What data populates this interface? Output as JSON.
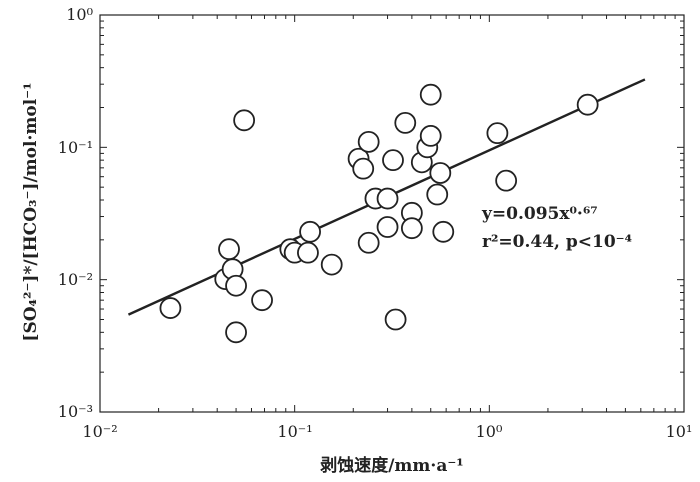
{
  "chart_data": {
    "type": "scatter",
    "title": "",
    "xlabel": "剥蚀速度/mm·a⁻¹",
    "ylabel": "[SO₄²⁻]*/[HCO₃⁻]/mol·mol⁻¹",
    "x_scale": "log",
    "y_scale": "log",
    "xlim": [
      0.01,
      10
    ],
    "ylim": [
      0.001,
      1
    ],
    "x_ticks": [
      "10⁻²",
      "10⁻¹",
      "10⁰",
      "10¹"
    ],
    "y_ticks": [
      "10⁰",
      "10⁻¹",
      "10⁻²",
      "10⁻³"
    ],
    "grid": false,
    "points": [
      {
        "x": 0.023,
        "y": 0.0061
      },
      {
        "x": 0.044,
        "y": 0.0101
      },
      {
        "x": 0.046,
        "y": 0.017
      },
      {
        "x": 0.048,
        "y": 0.012
      },
      {
        "x": 0.05,
        "y": 0.009
      },
      {
        "x": 0.05,
        "y": 0.004
      },
      {
        "x": 0.055,
        "y": 0.16
      },
      {
        "x": 0.068,
        "y": 0.007
      },
      {
        "x": 0.095,
        "y": 0.017
      },
      {
        "x": 0.1,
        "y": 0.016
      },
      {
        "x": 0.117,
        "y": 0.016
      },
      {
        "x": 0.12,
        "y": 0.023
      },
      {
        "x": 0.155,
        "y": 0.013
      },
      {
        "x": 0.213,
        "y": 0.082
      },
      {
        "x": 0.225,
        "y": 0.069
      },
      {
        "x": 0.24,
        "y": 0.11
      },
      {
        "x": 0.24,
        "y": 0.019
      },
      {
        "x": 0.26,
        "y": 0.041
      },
      {
        "x": 0.3,
        "y": 0.041
      },
      {
        "x": 0.3,
        "y": 0.025
      },
      {
        "x": 0.32,
        "y": 0.08
      },
      {
        "x": 0.33,
        "y": 0.005
      },
      {
        "x": 0.37,
        "y": 0.153
      },
      {
        "x": 0.4,
        "y": 0.032
      },
      {
        "x": 0.4,
        "y": 0.0245
      },
      {
        "x": 0.45,
        "y": 0.077
      },
      {
        "x": 0.48,
        "y": 0.1
      },
      {
        "x": 0.5,
        "y": 0.122
      },
      {
        "x": 0.5,
        "y": 0.25
      },
      {
        "x": 0.54,
        "y": 0.044
      },
      {
        "x": 0.56,
        "y": 0.064
      },
      {
        "x": 0.58,
        "y": 0.023
      },
      {
        "x": 1.1,
        "y": 0.128
      },
      {
        "x": 1.22,
        "y": 0.056
      },
      {
        "x": 3.2,
        "y": 0.21
      }
    ],
    "fit": {
      "a": 0.095,
      "b": 0.67,
      "x_range": [
        0.014,
        6.3
      ]
    },
    "annotation": {
      "equation": "y=0.095x⁰·⁶⁷",
      "stats": "r²=0.44, p<10⁻⁴"
    },
    "colors": {
      "marker_fill": "#ffffff",
      "marker_stroke": "#222222",
      "line": "#222222"
    }
  }
}
